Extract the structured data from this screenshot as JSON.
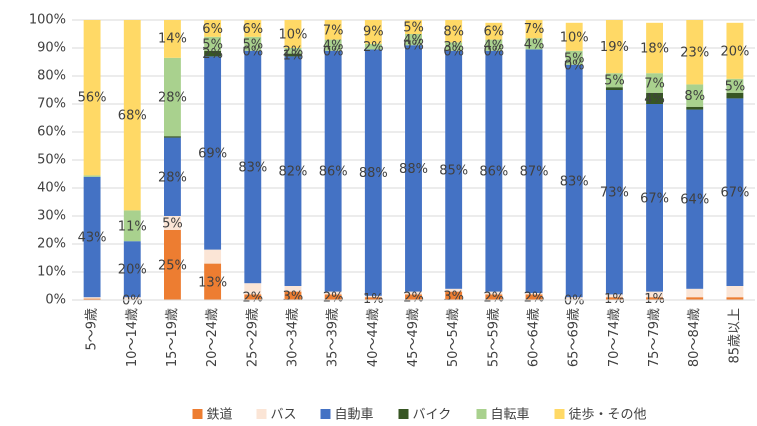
{
  "chart_data": {
    "type": "stacked_bar_100",
    "categories": [
      "5〜9歳",
      "10〜14歳",
      "15〜19歳",
      "20〜24歳",
      "25〜29歳",
      "30〜34歳",
      "35〜39歳",
      "40〜44歳",
      "45〜49歳",
      "50〜54歳",
      "55〜59歳",
      "60〜64歳",
      "65〜69歳",
      "70〜74歳",
      "75〜79歳",
      "80〜84歳",
      "85歳以上"
    ],
    "series": [
      {
        "name": "鉄道",
        "color": "#ed7d31",
        "values": [
          0.5,
          0,
          25,
          13,
          2,
          3,
          2,
          1,
          2,
          3,
          2,
          2,
          0,
          1,
          1,
          1,
          1
        ],
        "value_labels": [
          null,
          "0%",
          "25%",
          "13%",
          "2%",
          "3%",
          "2%",
          "1%",
          "2%",
          "3%",
          "2%",
          "2%",
          "0%",
          "1%",
          "1%",
          null,
          null
        ]
      },
      {
        "name": "バス",
        "color": "#fbe5d6",
        "values": [
          0.5,
          1,
          5,
          5,
          4,
          2,
          1,
          0.5,
          1,
          1,
          1,
          0.5,
          1,
          1,
          2,
          3,
          4
        ],
        "value_labels": [
          null,
          null,
          "5%",
          null,
          null,
          null,
          null,
          null,
          null,
          null,
          null,
          null,
          null,
          null,
          null,
          null,
          null
        ]
      },
      {
        "name": "自動車",
        "color": "#4472c4",
        "values": [
          43,
          20,
          28,
          69,
          83,
          82,
          86,
          88,
          88,
          85,
          86,
          87,
          83,
          73,
          67,
          64,
          67
        ],
        "value_labels": [
          "43%",
          "20%",
          "28%",
          "69%",
          "83%",
          "82%",
          "86%",
          "88%",
          "88%",
          "85%",
          "86%",
          "87%",
          "83%",
          "73%",
          "67%",
          "64%",
          "67%"
        ]
      },
      {
        "name": "バイク",
        "color": "#375623",
        "values": [
          0,
          0,
          0.5,
          2,
          0,
          1,
          0,
          0,
          0,
          0,
          0,
          0,
          0,
          1,
          4,
          1,
          2
        ],
        "value_labels": [
          null,
          null,
          null,
          "2%",
          "0%",
          "1%",
          "0%",
          null,
          "0%",
          "0%",
          "0%",
          null,
          "0%",
          null,
          "4%",
          null,
          null
        ]
      },
      {
        "name": "自転車",
        "color": "#a9d18e",
        "values": [
          0.5,
          11,
          28,
          5,
          5,
          2,
          4,
          2,
          4,
          3,
          4,
          4,
          5,
          5,
          7,
          8,
          5
        ],
        "value_labels": [
          null,
          "11%",
          "28%",
          "5%",
          "5%",
          "2%",
          "4%",
          "2%",
          "4%",
          "3%",
          "4%",
          "4%",
          "5%",
          "5%",
          "7%",
          "8%",
          "5%"
        ]
      },
      {
        "name": "徒歩・その他",
        "color": "#ffd966",
        "values": [
          56,
          68,
          14,
          6,
          6,
          10,
          7,
          9,
          5,
          8,
          6,
          7,
          10,
          19,
          18,
          23,
          20
        ],
        "value_labels": [
          "56%",
          "68%",
          "14%",
          "6%",
          "6%",
          "10%",
          "7%",
          "9%",
          "5%",
          "8%",
          "6%",
          "7%",
          "10%",
          "19%",
          "18%",
          "23%",
          "20%"
        ]
      }
    ],
    "ylim": [
      0,
      100
    ],
    "yticks": [
      {
        "value": 0,
        "label": "0%"
      },
      {
        "value": 10,
        "label": "10%"
      },
      {
        "value": 20,
        "label": "20%"
      },
      {
        "value": 30,
        "label": "30%"
      },
      {
        "value": 40,
        "label": "40%"
      },
      {
        "value": 50,
        "label": "50%"
      },
      {
        "value": 60,
        "label": "60%"
      },
      {
        "value": 70,
        "label": "70%"
      },
      {
        "value": 80,
        "label": "80%"
      },
      {
        "value": 90,
        "label": "90%"
      },
      {
        "value": 100,
        "label": "100%"
      }
    ],
    "grid": true,
    "legend": "bottom"
  }
}
